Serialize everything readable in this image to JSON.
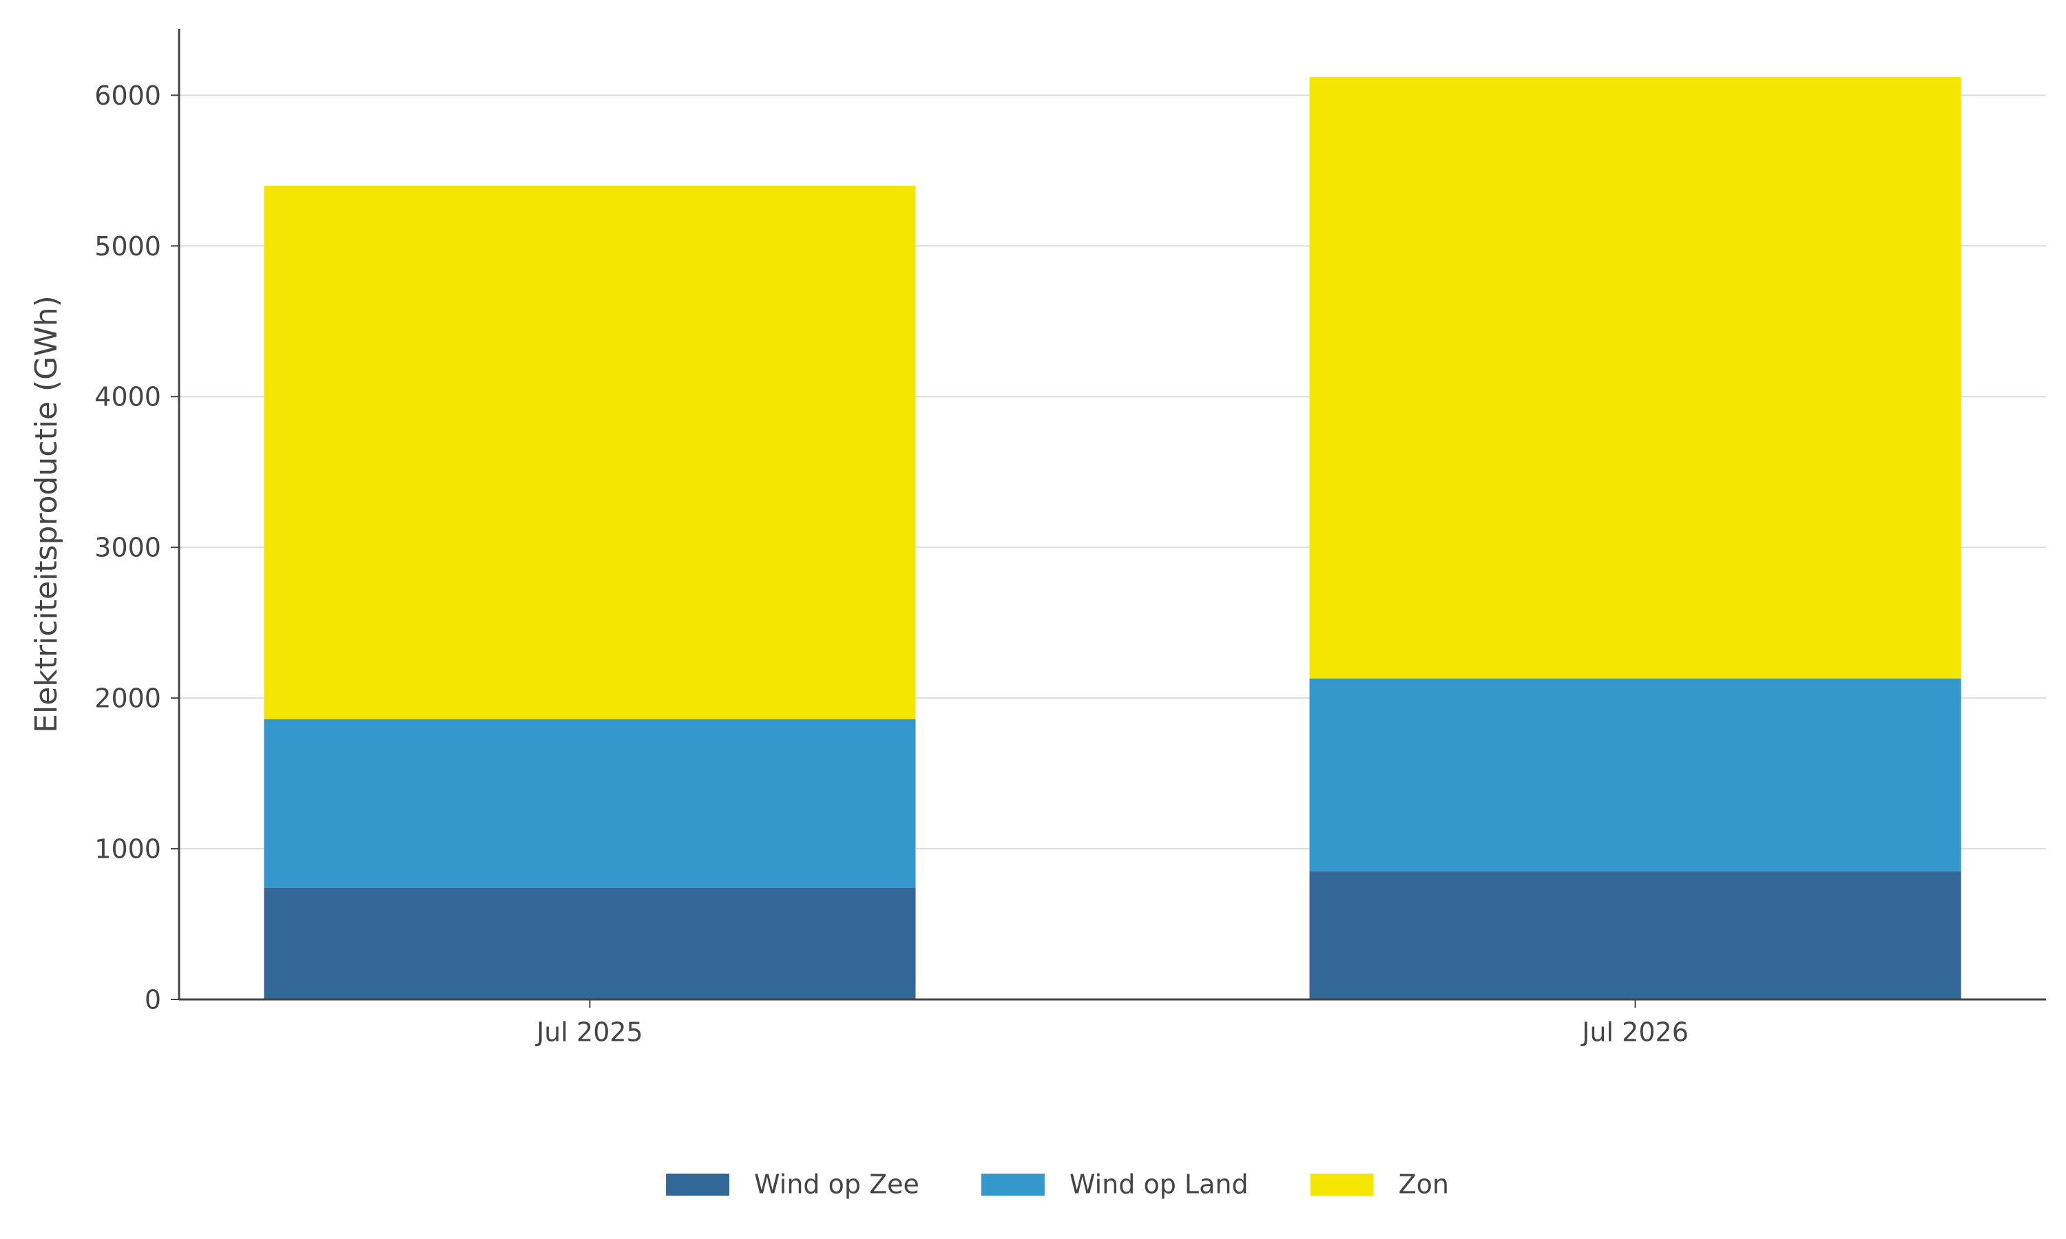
{
  "chart_data": {
    "type": "stacked_bar",
    "y_label": "Elektriciteitsproductie (GWh)",
    "categories": [
      "Jul 2025",
      "Jul 2026"
    ],
    "series": [
      {
        "name": "Wind op Zee",
        "color": "#336797",
        "values": [
          740,
          850
        ]
      },
      {
        "name": "Wind op Land",
        "color": "#3498cc",
        "values": [
          1120,
          1280
        ]
      },
      {
        "name": "Zon",
        "color": "#f5e600",
        "values": [
          3540,
          3990
        ]
      }
    ],
    "ylim": [
      0,
      6440
    ],
    "yticks": [
      0,
      1000,
      2000,
      3000,
      4000,
      5000,
      6000
    ],
    "grid": true
  }
}
